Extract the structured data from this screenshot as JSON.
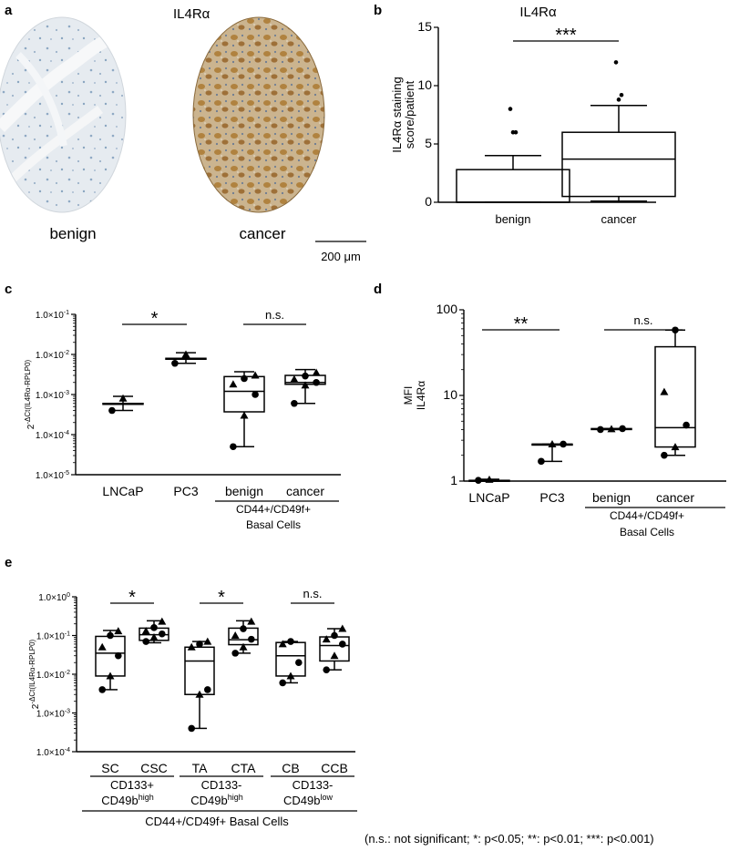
{
  "figure": {
    "footnote": "(n.s.: not significant; *: p<0.05; **: p<0.01; ***: p<0.001)"
  },
  "panel_a": {
    "letter": "a",
    "title": "IL4Rα",
    "label_left": "benign",
    "label_right": "cancer",
    "scalebar": "200 μm",
    "colors": {
      "benign_bg": "#e8ecf0",
      "benign_stain": "#9fb6cc",
      "cancer_bg": "#c8b08a",
      "cancer_stain": "#a9793a"
    }
  },
  "chart_data": [
    {
      "panel": "b",
      "type": "box",
      "title": "IL4Rα",
      "ylabel": [
        "IL4Rα staining",
        "score/patient"
      ],
      "ylim": [
        0,
        15
      ],
      "yticks": [
        "0",
        "5",
        "10",
        "15"
      ],
      "scale": "linear",
      "categories": [
        "benign",
        "cancer"
      ],
      "boxes": [
        {
          "min": 0,
          "q1": 0,
          "median": 0,
          "q3": 2.8,
          "max": 4.0,
          "outliers": [
            6,
            6,
            8
          ],
          "points": []
        },
        {
          "min": 0.1,
          "q1": 0.5,
          "median": 3.7,
          "q3": 6.0,
          "max": 8.3,
          "outliers": [
            8.8,
            9.2,
            12
          ],
          "points": []
        }
      ],
      "significance": [
        {
          "from": 0,
          "to": 1,
          "label": "***"
        }
      ]
    },
    {
      "panel": "c",
      "type": "box",
      "title": "",
      "ylabel": [
        "2-ΔCt(IL4Rα-RPLP0)"
      ],
      "ylim": [
        1e-05,
        0.1
      ],
      "yticks": [
        "1.0×10-5",
        "1.0×10-4",
        "1.0×10-3",
        "1.0×10-2",
        "1.0×10-1"
      ],
      "scale": "log",
      "categories": [
        "LNCaP",
        "PC3",
        "benign",
        "cancer"
      ],
      "group_label": [
        "CD44+/CD49f+",
        "Basal Cells"
      ],
      "boxes": [
        {
          "min": 0.0004,
          "q1": 0.0006,
          "median": 0.0006,
          "q3": 0.0006,
          "max": 0.0009,
          "points": [
            0.0004,
            0.0008
          ]
        },
        {
          "min": 0.006,
          "q1": 0.008,
          "median": 0.008,
          "q3": 0.008,
          "max": 0.011,
          "points": [
            0.006,
            0.01
          ]
        },
        {
          "min": 5e-05,
          "q1": 0.00037,
          "median": 0.0012,
          "q3": 0.0028,
          "max": 0.0037,
          "points": [
            5e-05,
            0.0003,
            0.001,
            0.0018,
            0.0025,
            0.003
          ]
        },
        {
          "min": 0.0006,
          "q1": 0.0018,
          "median": 0.002,
          "q3": 0.003,
          "max": 0.0042,
          "points": [
            0.0006,
            0.0017,
            0.002,
            0.0024,
            0.0029,
            0.0035
          ]
        }
      ],
      "significance": [
        {
          "from": 0,
          "to": 1,
          "label": "*"
        },
        {
          "from": 2,
          "to": 3,
          "label": "n.s."
        }
      ]
    },
    {
      "panel": "d",
      "type": "box",
      "title": "",
      "ylabel": [
        "MFI",
        "IL4Rα"
      ],
      "ylim": [
        1,
        100
      ],
      "yticks": [
        "1",
        "10",
        "100"
      ],
      "scale": "log",
      "categories": [
        "LNCaP",
        "PC3",
        "benign",
        "cancer"
      ],
      "group_label": [
        "CD44+/CD49f+",
        "Basal Cells"
      ],
      "boxes": [
        {
          "min": 1.0,
          "q1": 1.02,
          "median": 1.02,
          "q3": 1.02,
          "max": 1.05,
          "points": [
            1.02,
            1.04
          ]
        },
        {
          "min": 1.7,
          "q1": 2.7,
          "median": 2.7,
          "q3": 2.7,
          "max": 2.7,
          "points": [
            1.7,
            2.7,
            2.7
          ]
        },
        {
          "min": 4.0,
          "q1": 4.0,
          "median": 4.05,
          "q3": 4.1,
          "max": 4.1,
          "points": [
            4.0,
            4.05,
            4.1
          ]
        },
        {
          "min": 2.0,
          "q1": 2.5,
          "median": 4.2,
          "q3": 37,
          "max": 58,
          "points": [
            2.0,
            2.5,
            4.5,
            11,
            58
          ]
        }
      ],
      "significance": [
        {
          "from": 0,
          "to": 1,
          "label": "**"
        },
        {
          "from": 2,
          "to": 3,
          "label": "n.s."
        }
      ]
    },
    {
      "panel": "e",
      "type": "box",
      "title": "",
      "ylabel": [
        "2-ΔCt(IL4Rα-RPLP0)"
      ],
      "ylim": [
        0.0001,
        1
      ],
      "yticks": [
        "1.0×10-4",
        "1.0×10-3",
        "1.0×10-2",
        "1.0×10-1",
        "1.0×100"
      ],
      "scale": "log",
      "categories": [
        "SC",
        "CSC",
        "TA",
        "CTA",
        "CB",
        "CCB"
      ],
      "subgroups": [
        {
          "line1": "CD133+",
          "line2_base": "CD49b",
          "line2_sup": "high"
        },
        {
          "line1": "CD133-",
          "line2_base": "CD49b",
          "line2_sup": "high"
        },
        {
          "line1": "CD133-",
          "line2_base": "CD49b",
          "line2_sup": "low"
        }
      ],
      "group_label": "CD44+/CD49f+ Basal Cells",
      "boxes": [
        {
          "min": 0.004,
          "q1": 0.009,
          "median": 0.035,
          "q3": 0.095,
          "max": 0.135,
          "points": [
            0.004,
            0.009,
            0.03,
            0.05,
            0.1,
            0.13
          ]
        },
        {
          "min": 0.065,
          "q1": 0.075,
          "median": 0.105,
          "q3": 0.155,
          "max": 0.24,
          "points": [
            0.07,
            0.09,
            0.11,
            0.13,
            0.16,
            0.23
          ]
        },
        {
          "min": 0.0004,
          "q1": 0.003,
          "median": 0.022,
          "q3": 0.05,
          "max": 0.07,
          "points": [
            0.0004,
            0.003,
            0.004,
            0.05,
            0.06,
            0.07
          ]
        },
        {
          "min": 0.035,
          "q1": 0.058,
          "median": 0.078,
          "q3": 0.155,
          "max": 0.24,
          "points": [
            0.035,
            0.05,
            0.08,
            0.1,
            0.15,
            0.23
          ]
        },
        {
          "min": 0.006,
          "q1": 0.009,
          "median": 0.03,
          "q3": 0.066,
          "max": 0.07,
          "points": [
            0.006,
            0.009,
            0.02,
            0.06,
            0.07
          ]
        },
        {
          "min": 0.013,
          "q1": 0.022,
          "median": 0.055,
          "q3": 0.092,
          "max": 0.15,
          "points": [
            0.013,
            0.03,
            0.06,
            0.08,
            0.1,
            0.15
          ]
        }
      ],
      "significance": [
        {
          "from": 0,
          "to": 1,
          "label": "*"
        },
        {
          "from": 2,
          "to": 3,
          "label": "*"
        },
        {
          "from": 4,
          "to": 5,
          "label": "n.s."
        }
      ]
    }
  ]
}
